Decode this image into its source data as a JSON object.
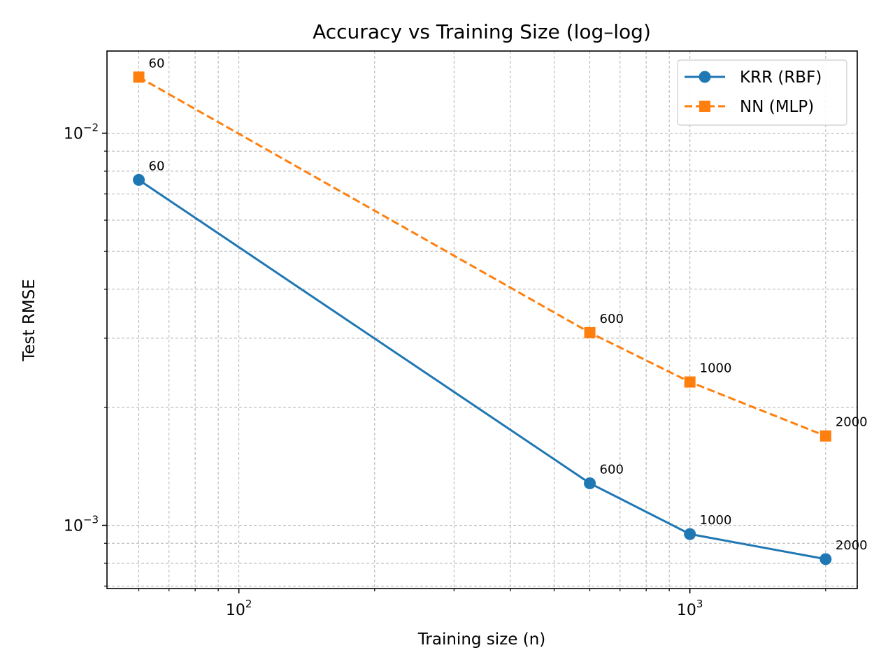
{
  "chart_data": {
    "type": "line",
    "title": "Accuracy vs Training Size (log–log)",
    "xlabel": "Training size (n)",
    "ylabel": "Test RMSE",
    "xscale": "log",
    "yscale": "log",
    "xlim": [
      51,
      2350
    ],
    "ylim": [
      0.00069,
      0.0162
    ],
    "grid": "both (major and minor, dashed)",
    "legend_position": "top-right",
    "x_ticks": [
      {
        "base": "10",
        "exp": "2",
        "value": 100
      },
      {
        "base": "10",
        "exp": "3",
        "value": 1000
      }
    ],
    "y_ticks": [
      {
        "base": "10",
        "exp": "−2",
        "value": 0.01
      },
      {
        "base": "10",
        "exp": "−3",
        "value": 0.001
      }
    ],
    "x": [
      60,
      600,
      1000,
      2000
    ],
    "series": [
      {
        "name": "KRR (RBF)",
        "values": [
          0.0076,
          0.00128,
          0.00095,
          0.00082
        ],
        "point_labels": [
          "60",
          "600",
          "1000",
          "2000"
        ],
        "color": "#1f77b4",
        "marker": "circle",
        "line_style": "solid"
      },
      {
        "name": "NN (MLP)",
        "values": [
          0.0139,
          0.0031,
          0.00232,
          0.00169
        ],
        "point_labels": [
          "60",
          "600",
          "1000",
          "2000"
        ],
        "color": "#ff7f0e",
        "marker": "square",
        "line_style": "dashed"
      }
    ]
  }
}
